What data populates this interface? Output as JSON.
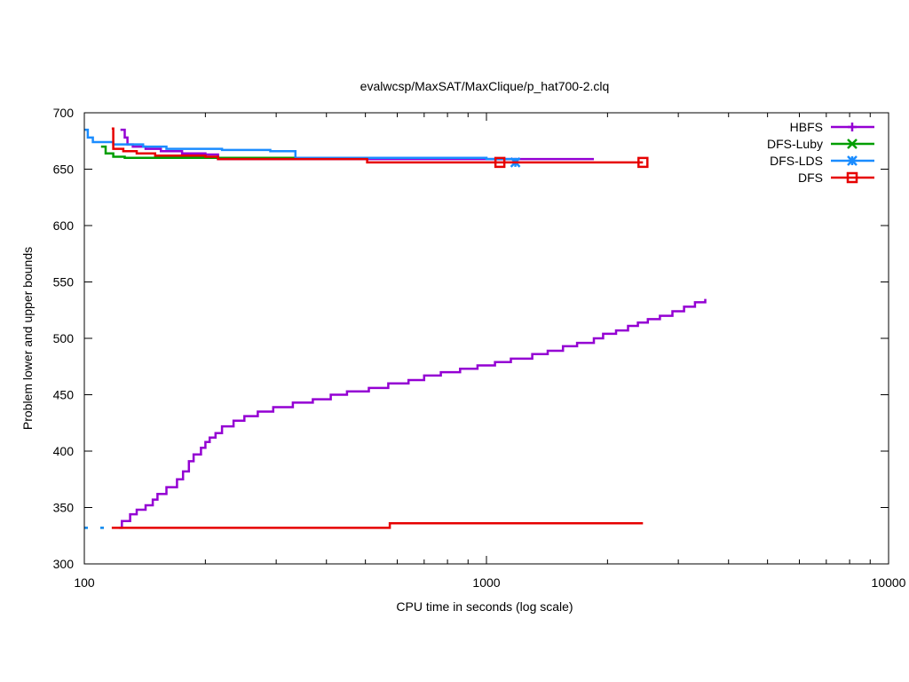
{
  "chart_data": {
    "type": "line",
    "title": "evalwcsp/MaxSAT/MaxClique/p_hat700-2.clq",
    "xlabel": "CPU time in seconds (log scale)",
    "ylabel": "Problem lower and upper bounds",
    "xscale": "log",
    "xlim": [
      100,
      10000
    ],
    "ylim": [
      300,
      700
    ],
    "x_ticks": [
      100,
      1000,
      10000
    ],
    "x_tick_labels": [
      "100",
      "1000",
      "10000"
    ],
    "y_ticks": [
      300,
      350,
      400,
      450,
      500,
      550,
      600,
      650,
      700
    ],
    "y_tick_labels": [
      "300",
      "350",
      "400",
      "450",
      "500",
      "550",
      "600",
      "650",
      "700"
    ],
    "grid": false,
    "legend_position": "top-right",
    "series": [
      {
        "name": "HBFS",
        "color": "#9400d3",
        "marker": "plus",
        "upper": [
          [
            123,
            685
          ],
          [
            126,
            678
          ],
          [
            128,
            672
          ],
          [
            132,
            670
          ],
          [
            142,
            668
          ],
          [
            155,
            666
          ],
          [
            175,
            664
          ],
          [
            200,
            663
          ],
          [
            215,
            659
          ],
          [
            1850,
            659
          ]
        ],
        "lower": [
          [
            122,
            332
          ],
          [
            124,
            338
          ],
          [
            130,
            344
          ],
          [
            135,
            348
          ],
          [
            142,
            352
          ],
          [
            148,
            357
          ],
          [
            152,
            362
          ],
          [
            160,
            368
          ],
          [
            170,
            375
          ],
          [
            176,
            382
          ],
          [
            182,
            391
          ],
          [
            187,
            397
          ],
          [
            195,
            403
          ],
          [
            200,
            408
          ],
          [
            205,
            412
          ],
          [
            212,
            416
          ],
          [
            220,
            422
          ],
          [
            235,
            427
          ],
          [
            250,
            431
          ],
          [
            270,
            435
          ],
          [
            295,
            439
          ],
          [
            330,
            443
          ],
          [
            370,
            446
          ],
          [
            410,
            450
          ],
          [
            450,
            453
          ],
          [
            510,
            456
          ],
          [
            570,
            460
          ],
          [
            640,
            463
          ],
          [
            700,
            467
          ],
          [
            770,
            470
          ],
          [
            860,
            473
          ],
          [
            950,
            476
          ],
          [
            1050,
            479
          ],
          [
            1150,
            482
          ],
          [
            1300,
            486
          ],
          [
            1420,
            489
          ],
          [
            1550,
            493
          ],
          [
            1680,
            496
          ],
          [
            1850,
            500
          ],
          [
            1950,
            504
          ],
          [
            2100,
            507
          ],
          [
            2250,
            511
          ],
          [
            2380,
            514
          ],
          [
            2520,
            517
          ],
          [
            2700,
            520
          ],
          [
            2900,
            524
          ],
          [
            3100,
            528
          ],
          [
            3300,
            532
          ],
          [
            3500,
            535
          ]
        ],
        "markers": []
      },
      {
        "name": "DFS-Luby",
        "color": "#009e00",
        "marker": "x",
        "upper": [
          [
            110,
            670
          ],
          [
            113,
            664
          ],
          [
            118,
            661
          ],
          [
            126,
            660
          ],
          [
            880,
            660
          ]
        ],
        "lower": [
          [
            100,
            332
          ],
          [
            116,
            332
          ]
        ],
        "markers": []
      },
      {
        "name": "DFS-LDS",
        "color": "#1a8cff",
        "marker": "star",
        "upper": [
          [
            100,
            685
          ],
          [
            102,
            678
          ],
          [
            105,
            674
          ],
          [
            118,
            672
          ],
          [
            140,
            670
          ],
          [
            160,
            668
          ],
          [
            220,
            667
          ],
          [
            290,
            666
          ],
          [
            335,
            660
          ],
          [
            1000,
            659
          ],
          [
            1200,
            659
          ]
        ],
        "lower": [
          [
            100,
            332
          ],
          [
            114,
            332
          ]
        ],
        "markers": [
          [
            1180,
            656
          ]
        ]
      },
      {
        "name": "DFS",
        "color": "#e60000",
        "marker": "square",
        "upper": [
          [
            117,
            686
          ],
          [
            118,
            668
          ],
          [
            125,
            666
          ],
          [
            135,
            664
          ],
          [
            150,
            662
          ],
          [
            200,
            661
          ],
          [
            215,
            659
          ],
          [
            500,
            659
          ],
          [
            505,
            656
          ],
          [
            2450,
            656
          ]
        ],
        "lower": [
          [
            117,
            332
          ],
          [
            570,
            332
          ],
          [
            575,
            336
          ],
          [
            2450,
            336
          ]
        ],
        "markers": [
          [
            1080,
            656
          ],
          [
            2450,
            656
          ]
        ]
      }
    ]
  }
}
